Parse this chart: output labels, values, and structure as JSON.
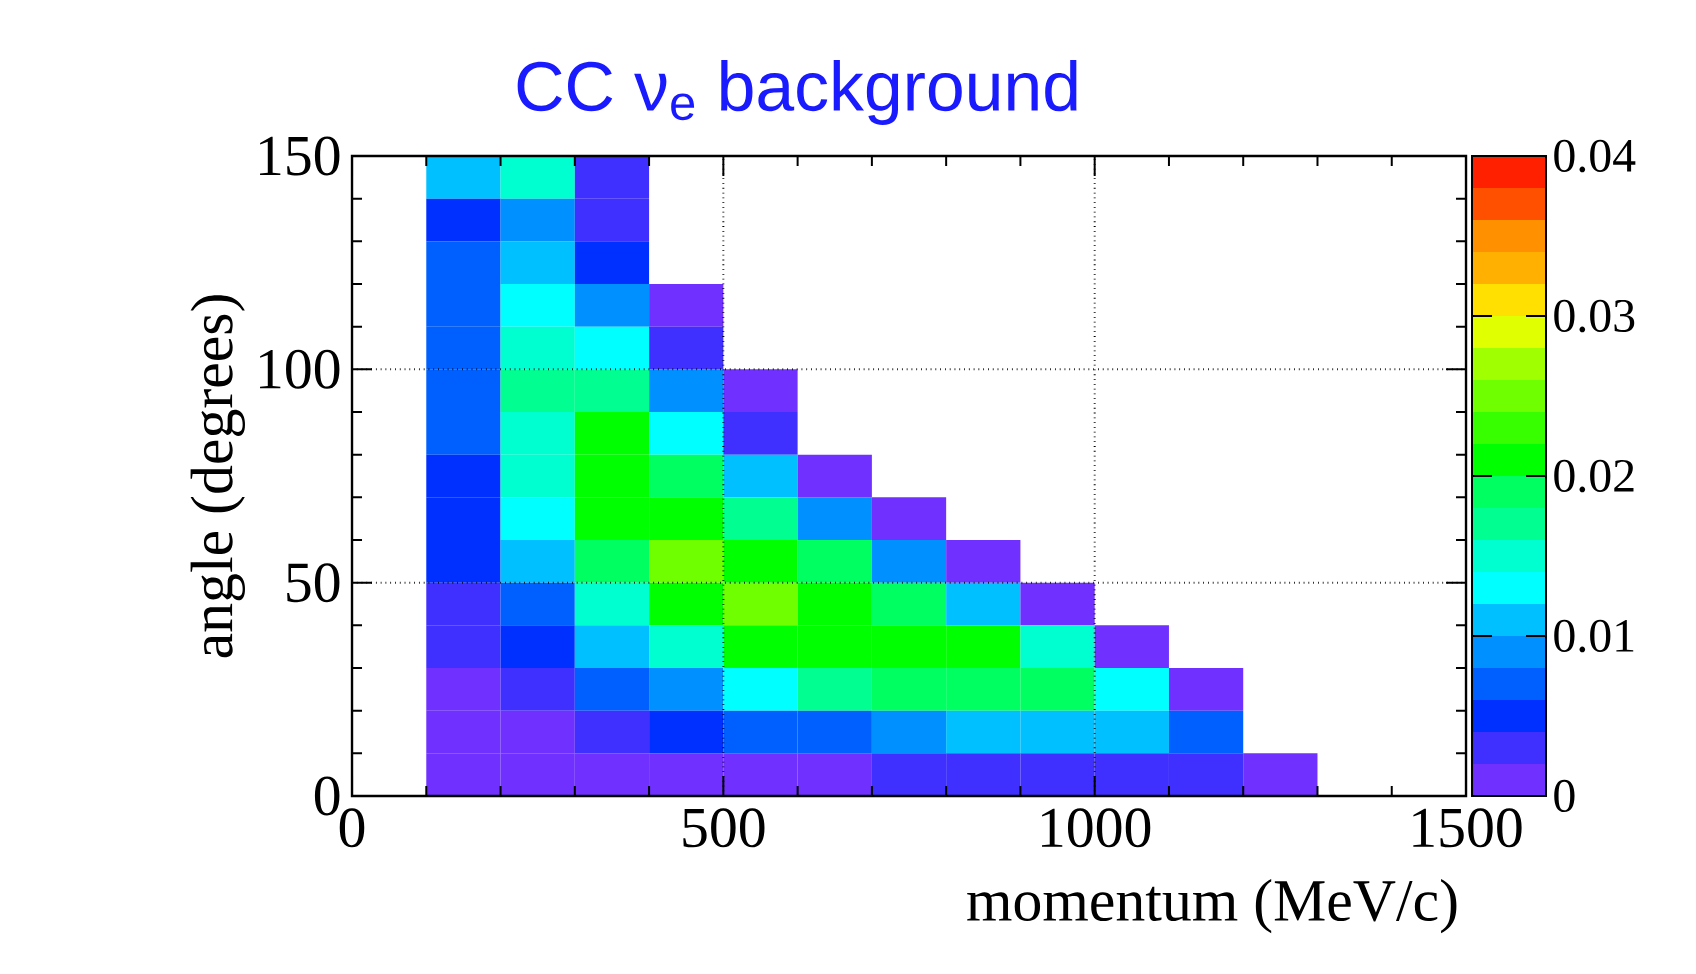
{
  "chart_data": {
    "type": "heatmap",
    "title": "CC ν$_{e}$ background",
    "xlabel": "momentum (MeV/c)",
    "ylabel": "angle (degrees)",
    "x": [
      50,
      150,
      250,
      350,
      450,
      550,
      650,
      750,
      850,
      950,
      1050,
      1150,
      1250,
      1350,
      1450
    ],
    "y": [
      145,
      135,
      125,
      115,
      105,
      95,
      85,
      75,
      65,
      55,
      45,
      35,
      25,
      15,
      5
    ],
    "xlim": [
      0,
      1500
    ],
    "xticks": [
      0,
      500,
      1000,
      1500
    ],
    "ylim": [
      0,
      150
    ],
    "yticks": [
      0,
      50,
      100,
      150
    ],
    "clim": [
      0,
      0.04
    ],
    "cticks": [
      0,
      0.01,
      0.02,
      0.03,
      0.04
    ],
    "grid": true,
    "cells": [
      [
        null,
        0.011,
        0.015,
        0.003,
        null,
        null,
        null,
        null,
        null,
        null,
        null,
        null,
        null,
        null,
        null
      ],
      [
        null,
        0.005,
        0.009,
        0.003,
        null,
        null,
        null,
        null,
        null,
        null,
        null,
        null,
        null,
        null,
        null
      ],
      [
        null,
        0.007,
        0.011,
        0.005,
        null,
        null,
        null,
        null,
        null,
        null,
        null,
        null,
        null,
        null,
        null
      ],
      [
        null,
        0.007,
        0.013,
        0.009,
        0.001,
        null,
        null,
        null,
        null,
        null,
        null,
        null,
        null,
        null,
        null
      ],
      [
        null,
        0.007,
        0.015,
        0.013,
        0.003,
        null,
        null,
        null,
        null,
        null,
        null,
        null,
        null,
        null,
        null
      ],
      [
        null,
        0.007,
        0.017,
        0.017,
        0.009,
        0.001,
        null,
        null,
        null,
        null,
        null,
        null,
        null,
        null,
        null
      ],
      [
        null,
        0.007,
        0.015,
        0.021,
        0.013,
        0.003,
        null,
        null,
        null,
        null,
        null,
        null,
        null,
        null,
        null
      ],
      [
        null,
        0.005,
        0.015,
        0.021,
        0.019,
        0.011,
        0.001,
        null,
        null,
        null,
        null,
        null,
        null,
        null,
        null
      ],
      [
        null,
        0.005,
        0.013,
        0.021,
        0.021,
        0.017,
        0.009,
        0.001,
        null,
        null,
        null,
        null,
        null,
        null,
        null
      ],
      [
        null,
        0.005,
        0.011,
        0.019,
        0.025,
        0.021,
        0.019,
        0.009,
        0.001,
        null,
        null,
        null,
        null,
        null,
        null
      ],
      [
        null,
        0.003,
        0.007,
        0.015,
        0.021,
        0.025,
        0.021,
        0.019,
        0.011,
        0.001,
        null,
        null,
        null,
        null,
        null
      ],
      [
        null,
        0.003,
        0.005,
        0.011,
        0.015,
        0.021,
        0.021,
        0.021,
        0.021,
        0.015,
        0.001,
        null,
        null,
        null,
        null
      ],
      [
        null,
        0.001,
        0.003,
        0.007,
        0.009,
        0.013,
        0.017,
        0.019,
        0.019,
        0.019,
        0.013,
        0.001,
        null,
        null,
        null
      ],
      [
        null,
        0.001,
        0.001,
        0.003,
        0.005,
        0.007,
        0.007,
        0.009,
        0.011,
        0.011,
        0.011,
        0.007,
        null,
        null,
        null
      ],
      [
        null,
        0.001,
        0.001,
        0.001,
        0.001,
        0.001,
        0.001,
        0.003,
        0.003,
        0.003,
        0.003,
        0.003,
        0.001,
        null,
        null
      ]
    ]
  }
}
